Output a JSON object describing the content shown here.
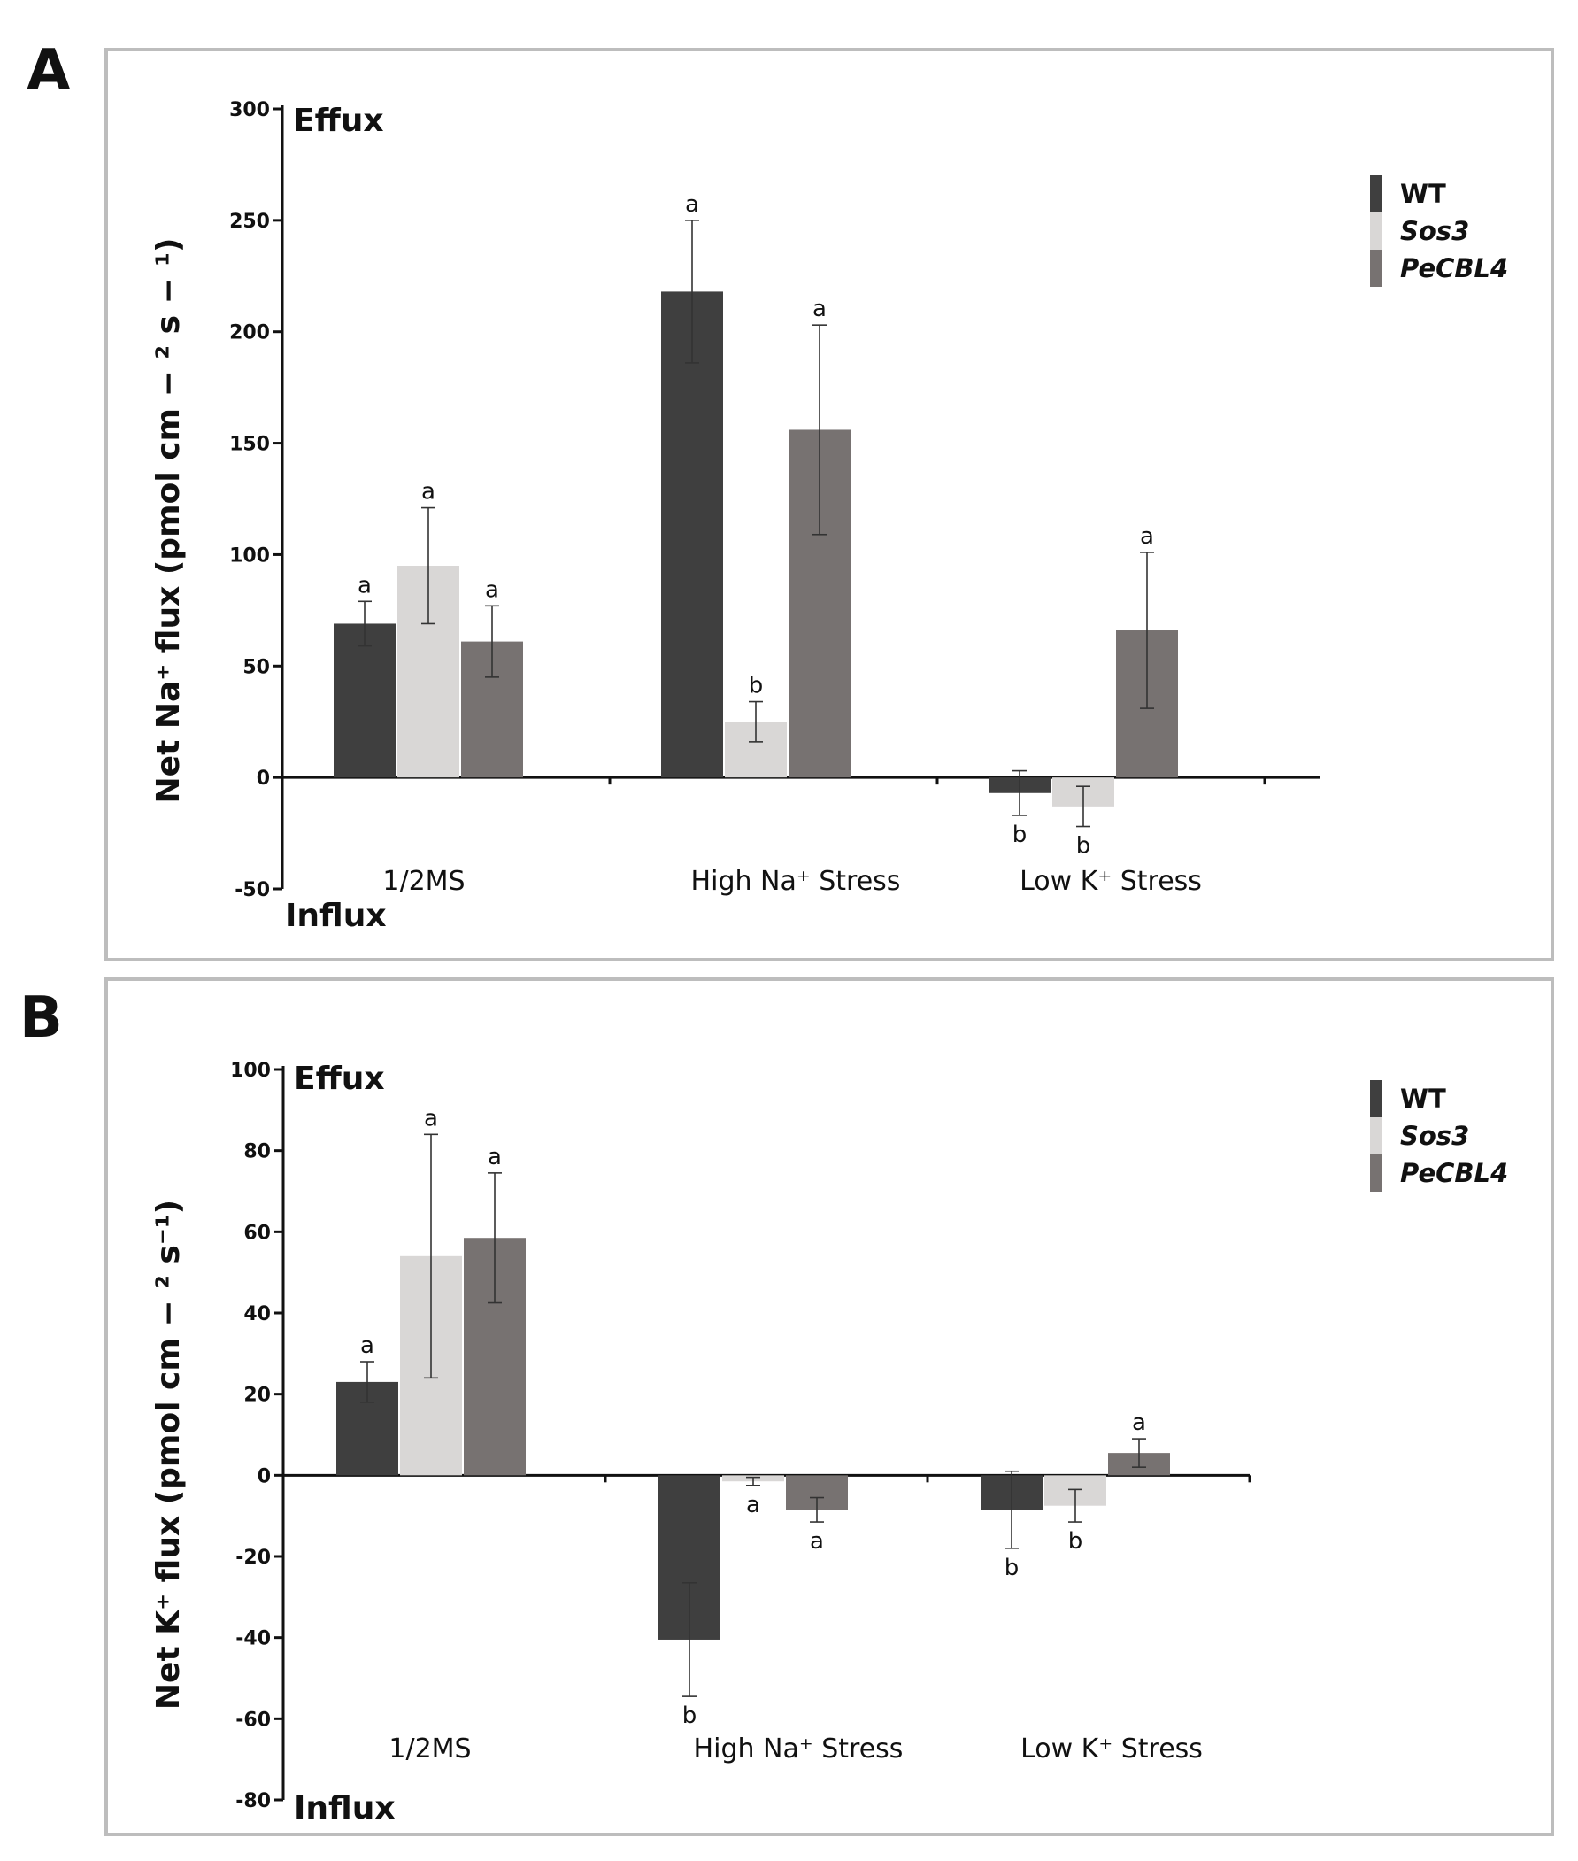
{
  "panels": {
    "a": {
      "letter": "A"
    },
    "b": {
      "letter": "B"
    }
  },
  "legend": {
    "items": [
      {
        "label": "WT",
        "color": "#3f3f3f",
        "italic": false
      },
      {
        "label": "Sos3",
        "color": "#d9d7d6",
        "italic": true
      },
      {
        "label": "PeCBL4",
        "color": "#777271",
        "italic": true
      }
    ]
  },
  "chart_data": [
    {
      "type": "bar",
      "panel": "A",
      "ylabel": "Net Na⁺ flux (pmol cm − ² s − ¹)",
      "top_annotation": "Effux",
      "bottom_annotation": "Influx",
      "categories": [
        "1/2MS",
        "High Na⁺ Stress",
        "Low K⁺ Stress"
      ],
      "ylim": [
        -50,
        300
      ],
      "yticks": [
        300,
        250,
        200,
        150,
        100,
        50,
        0,
        -50
      ],
      "series": [
        {
          "name": "WT",
          "color": "#3f3f3f",
          "values": [
            69,
            218,
            -7
          ],
          "errors": [
            10,
            32,
            10
          ],
          "letters": [
            "a",
            "a",
            "b"
          ]
        },
        {
          "name": "Sos3",
          "color": "#d9d7d6",
          "values": [
            95,
            25,
            -13
          ],
          "errors": [
            26,
            9,
            9
          ],
          "letters": [
            "a",
            "b",
            "b"
          ]
        },
        {
          "name": "PeCBL4",
          "color": "#777271",
          "values": [
            61,
            156,
            66
          ],
          "errors": [
            16,
            47,
            35
          ],
          "letters": [
            "a",
            "a",
            "a"
          ]
        }
      ]
    },
    {
      "type": "bar",
      "panel": "B",
      "ylabel": "Net K⁺ flux (pmol cm − ² s⁻¹)",
      "top_annotation": "Effux",
      "bottom_annotation": "Influx",
      "categories": [
        "1/2MS",
        "High Na⁺ Stress",
        "Low K⁺ Stress"
      ],
      "ylim": [
        -80,
        100
      ],
      "yticks": [
        100,
        80,
        60,
        40,
        20,
        0,
        -20,
        -40,
        -60,
        -80
      ],
      "series": [
        {
          "name": "WT",
          "color": "#3f3f3f",
          "values": [
            23,
            -40.5,
            -8.5
          ],
          "errors": [
            5,
            14,
            9.5
          ],
          "letters": [
            "a",
            "b",
            "b"
          ]
        },
        {
          "name": "Sos3",
          "color": "#d9d7d6",
          "values": [
            54,
            -1.5,
            -7.5
          ],
          "errors": [
            30,
            1,
            4
          ],
          "letters": [
            "",
            "a",
            "b"
          ]
        },
        {
          "name": "PeCBL4",
          "color": "#777271",
          "values": [
            58.5,
            -8.5,
            5.5
          ],
          "errors": [
            16,
            3,
            3.5
          ],
          "letters": [
            "a",
            "a",
            "a"
          ]
        }
      ],
      "extra_annotations": [
        {
          "category": 0,
          "series": 1,
          "letter": "a"
        }
      ]
    }
  ]
}
